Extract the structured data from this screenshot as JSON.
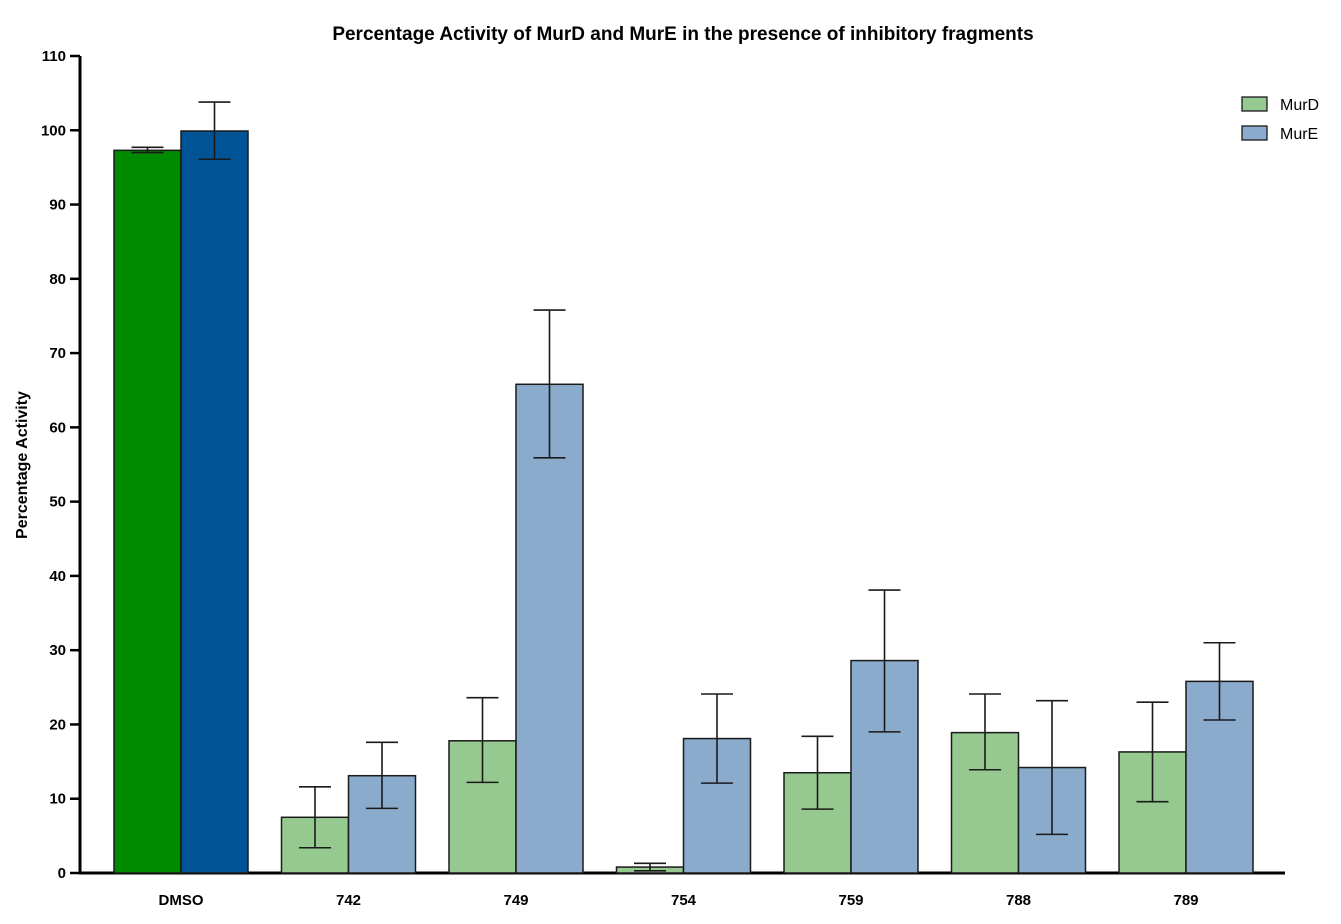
{
  "chart_data": {
    "type": "bar",
    "title": "Percentage Activity of MurD and MurE in the presence of inhibitory fragments",
    "xlabel": "",
    "ylabel": "Percentage Activity",
    "ylim": [
      0,
      110
    ],
    "yticks": [
      0,
      10,
      20,
      30,
      40,
      50,
      60,
      70,
      80,
      90,
      100,
      110
    ],
    "categories": [
      "DMSO",
      "742",
      "749",
      "754",
      "759",
      "788",
      "789"
    ],
    "legend_position": "top-right",
    "grid": false,
    "series": [
      {
        "name": "MurD",
        "color": "#96c98f",
        "control_color": "#008a00",
        "values": [
          97.3,
          7.5,
          17.8,
          0.8,
          13.5,
          18.9,
          16.3
        ],
        "err_low": [
          97.0,
          3.4,
          12.2,
          0.3,
          8.6,
          13.9,
          9.6
        ],
        "err_high": [
          97.7,
          11.6,
          23.6,
          1.3,
          18.4,
          24.1,
          23.0
        ]
      },
      {
        "name": "MurE",
        "color": "#8aabcb",
        "control_color": "#005394",
        "values": [
          99.9,
          13.1,
          65.8,
          18.1,
          28.6,
          14.2,
          25.8
        ],
        "err_low": [
          96.1,
          8.7,
          55.9,
          12.1,
          19.0,
          5.2,
          20.6
        ],
        "err_high": [
          103.8,
          17.6,
          75.8,
          24.1,
          38.1,
          23.2,
          31.0
        ]
      }
    ]
  }
}
